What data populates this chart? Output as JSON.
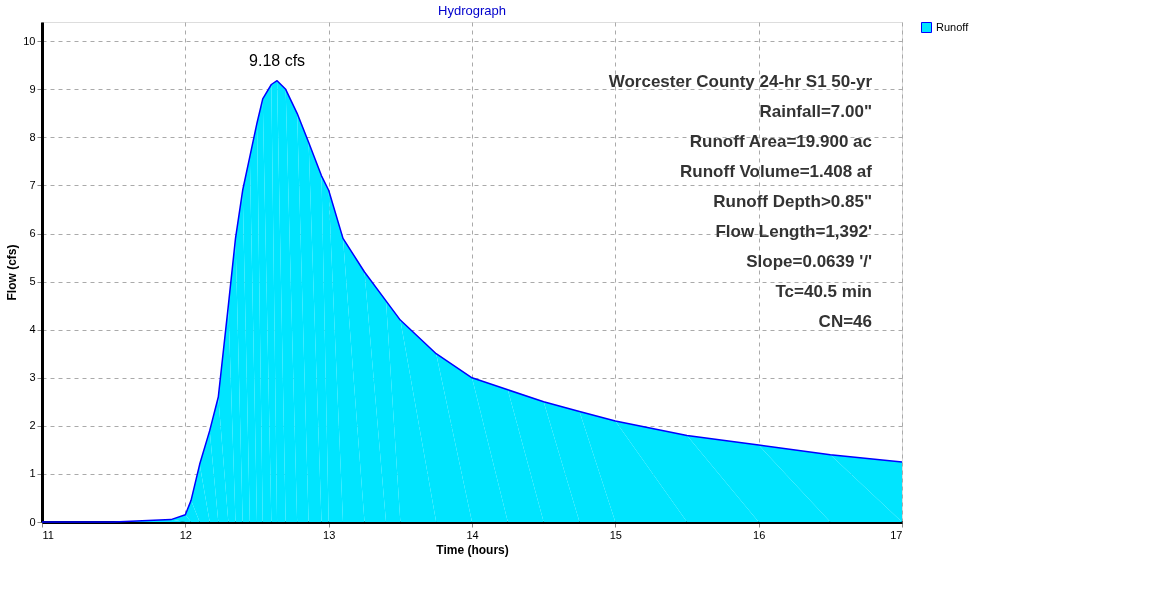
{
  "chart_data": {
    "type": "area",
    "title": "Hydrograph",
    "xlabel": "Time  (hours)",
    "ylabel": "Flow  (cfs)",
    "x": [
      11,
      11.5,
      11.9,
      12.0,
      12.04,
      12.1,
      12.17,
      12.23,
      12.3,
      12.35,
      12.4,
      12.45,
      12.5,
      12.54,
      12.6,
      12.64,
      12.7,
      12.78,
      12.86,
      12.95,
      13.0,
      13.1,
      13.25,
      13.4,
      13.5,
      13.75,
      14.0,
      14.25,
      14.5,
      14.75,
      15.0,
      15.5,
      16.0,
      16.5,
      17.0
    ],
    "series": [
      {
        "name": "Runoff",
        "color": "#00e5ff",
        "values": [
          0,
          0,
          0.05,
          0.15,
          0.45,
          1.2,
          1.9,
          2.6,
          4.5,
          5.9,
          6.9,
          7.6,
          8.3,
          8.8,
          9.1,
          9.18,
          9.0,
          8.5,
          7.9,
          7.2,
          6.9,
          5.9,
          5.2,
          4.6,
          4.2,
          3.5,
          3.0,
          2.75,
          2.5,
          2.3,
          2.1,
          1.8,
          1.6,
          1.4,
          1.25
        ]
      }
    ],
    "xlim": [
      11,
      17
    ],
    "xticks": [
      11,
      12,
      13,
      14,
      15,
      16,
      17
    ],
    "ylim": [
      0,
      10.4
    ],
    "yticks": [
      0,
      1,
      2,
      3,
      4,
      5,
      6,
      7,
      8,
      9,
      10
    ],
    "grid": true,
    "legend": "top right",
    "annotations": [
      {
        "text": "9.18 cfs",
        "x": 12.64,
        "y": 9.18
      },
      "Worcester County 24-hr S1 50-yr",
      "Rainfall=7.00\"",
      "Runoff Area=19.900 ac",
      "Runoff Volume=1.408 af",
      "Runoff Depth>0.85\"",
      "Flow Length=1,392'",
      "Slope=0.0639 '/'",
      "Tc=40.5 min",
      "CN=46"
    ]
  }
}
